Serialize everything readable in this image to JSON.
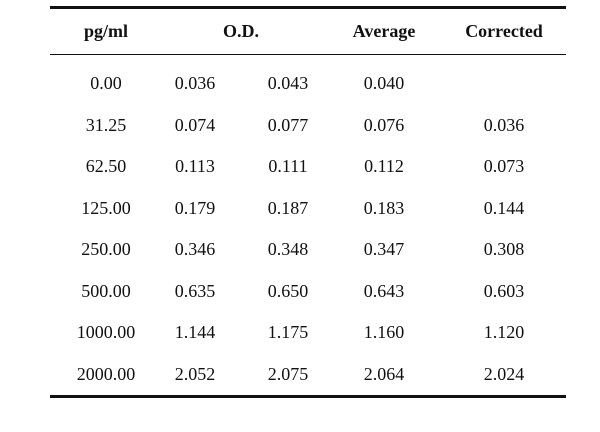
{
  "table": {
    "headers": {
      "concentration": "pg/ml",
      "od": "O.D.",
      "average": "Average",
      "corrected": "Corrected"
    },
    "rows": [
      {
        "concentration": "0.00",
        "od1": "0.036",
        "od2": "0.043",
        "average": "0.040",
        "corrected": ""
      },
      {
        "concentration": "31.25",
        "od1": "0.074",
        "od2": "0.077",
        "average": "0.076",
        "corrected": "0.036"
      },
      {
        "concentration": "62.50",
        "od1": "0.113",
        "od2": "0.111",
        "average": "0.112",
        "corrected": "0.073"
      },
      {
        "concentration": "125.00",
        "od1": "0.179",
        "od2": "0.187",
        "average": "0.183",
        "corrected": "0.144"
      },
      {
        "concentration": "250.00",
        "od1": "0.346",
        "od2": "0.348",
        "average": "0.347",
        "corrected": "0.308"
      },
      {
        "concentration": "500.00",
        "od1": "0.635",
        "od2": "0.650",
        "average": "0.643",
        "corrected": "0.603"
      },
      {
        "concentration": "1000.00",
        "od1": "1.144",
        "od2": "1.175",
        "average": "1.160",
        "corrected": "1.120"
      },
      {
        "concentration": "2000.00",
        "od1": "2.052",
        "od2": "2.075",
        "average": "2.064",
        "corrected": "2.024"
      }
    ]
  }
}
